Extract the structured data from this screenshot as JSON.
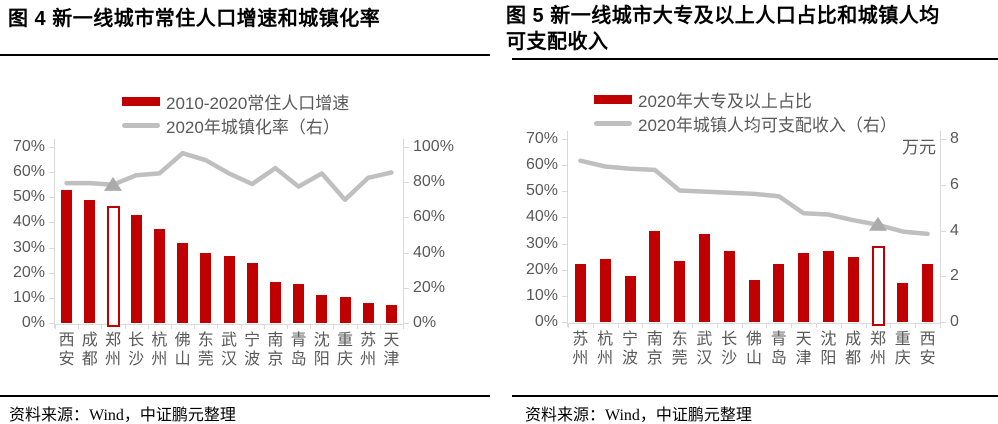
{
  "source_note": {
    "text": "资料来源：Wind，中证鹏元整理"
  },
  "colors": {
    "bar_red": "#C00000",
    "line_gray": "#BFBFBF",
    "marker_gray": "#ABABAB",
    "axis_gray": "#D9D9D9",
    "tick_text_gray": "#595959",
    "title_black": "#000000"
  },
  "chart_data": [
    {
      "type": "bar",
      "title": "图 4  新一线城市常住人口增速和城镇化率",
      "categories": [
        "西安",
        "成都",
        "郑州",
        "长沙",
        "杭州",
        "佛山",
        "东莞",
        "武汉",
        "宁波",
        "南京",
        "青岛",
        "沈阳",
        "重庆",
        "苏州",
        "天津"
      ],
      "series": [
        {
          "name": "2010-2020常住人口增速",
          "render": "bar",
          "axis": "left",
          "unit": "%",
          "values": [
            53,
            49,
            46.5,
            43,
            37.5,
            32,
            28,
            26.5,
            24,
            16.5,
            15.5,
            11,
            10.5,
            8,
            7
          ],
          "highlight_category": "郑州"
        },
        {
          "name": "2020年城镇化率（右）",
          "render": "line",
          "axis": "right",
          "unit": "%",
          "values": [
            79.5,
            79.5,
            78.5,
            84,
            85,
            96.5,
            92.5,
            85,
            79,
            88,
            77.5,
            85,
            70,
            82.5,
            85.5
          ],
          "marker_category": "郑州"
        }
      ],
      "left_axis": {
        "min": 0,
        "max": 70,
        "tick_labels": [
          "70%",
          "60%",
          "50%",
          "40%",
          "30%",
          "20%",
          "10%",
          "0%"
        ]
      },
      "right_axis": {
        "min": 0,
        "max": 100,
        "tick_labels": [
          "100%",
          "80%",
          "60%",
          "40%",
          "20%",
          "0%"
        ],
        "unit": ""
      },
      "grid": "off",
      "legend_position": "top"
    },
    {
      "type": "bar",
      "title": "图 5  新一线城市大专及以上人口占比和城镇人均可支配收入",
      "categories": [
        "苏州",
        "杭州",
        "宁波",
        "南京",
        "东莞",
        "武汉",
        "长沙",
        "佛山",
        "青岛",
        "天津",
        "沈阳",
        "成都",
        "郑州",
        "重庆",
        "西安"
      ],
      "series": [
        {
          "name": "2020年大专及以上占比",
          "render": "bar",
          "axis": "left",
          "unit": "%",
          "values": [
            22,
            24,
            17.5,
            35,
            23.5,
            33.5,
            27,
            16,
            22,
            26.5,
            27,
            25,
            29,
            15,
            22
          ],
          "highlight_category": "郑州"
        },
        {
          "name": "2020年城镇人均可支配收入（右）",
          "render": "line",
          "axis": "right",
          "unit": "万元",
          "values": [
            7.05,
            6.8,
            6.7,
            6.65,
            5.75,
            5.7,
            5.65,
            5.6,
            5.5,
            4.75,
            4.7,
            4.45,
            4.25,
            3.95,
            3.85
          ],
          "marker_category": "郑州"
        }
      ],
      "left_axis": {
        "min": 0,
        "max": 70,
        "tick_labels": [
          "70%",
          "60%",
          "50%",
          "40%",
          "30%",
          "20%",
          "10%",
          "0%"
        ]
      },
      "right_axis": {
        "min": 0,
        "max": 8,
        "tick_labels": [
          "8",
          "6",
          "4",
          "2",
          "0"
        ],
        "unit": "万元"
      },
      "grid": "off",
      "legend_position": "top"
    }
  ]
}
